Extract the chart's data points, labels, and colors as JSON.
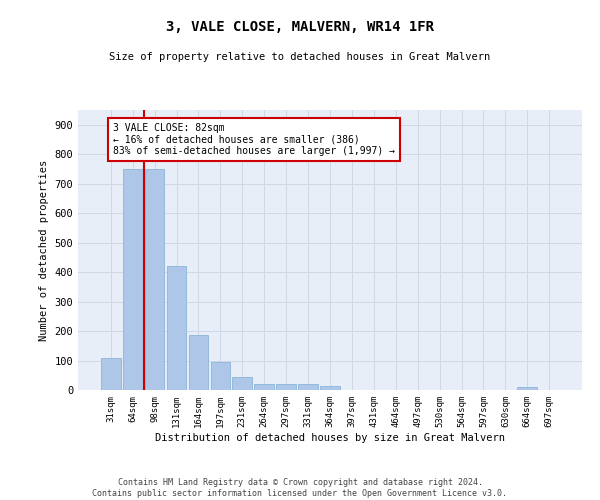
{
  "title": "3, VALE CLOSE, MALVERN, WR14 1FR",
  "subtitle": "Size of property relative to detached houses in Great Malvern",
  "xlabel": "Distribution of detached houses by size in Great Malvern",
  "ylabel": "Number of detached properties",
  "footer_line1": "Contains HM Land Registry data © Crown copyright and database right 2024.",
  "footer_line2": "Contains public sector information licensed under the Open Government Licence v3.0.",
  "categories": [
    "31sqm",
    "64sqm",
    "98sqm",
    "131sqm",
    "164sqm",
    "197sqm",
    "231sqm",
    "264sqm",
    "297sqm",
    "331sqm",
    "364sqm",
    "397sqm",
    "431sqm",
    "464sqm",
    "497sqm",
    "530sqm",
    "564sqm",
    "597sqm",
    "630sqm",
    "664sqm",
    "697sqm"
  ],
  "values": [
    110,
    750,
    750,
    420,
    185,
    95,
    45,
    20,
    20,
    20,
    15,
    0,
    0,
    0,
    0,
    0,
    0,
    0,
    0,
    10,
    0
  ],
  "bar_color": "#aec6e8",
  "bar_edge_color": "#7fafd4",
  "red_line_x": 1.5,
  "annotation_text": "3 VALE CLOSE: 82sqm\n← 16% of detached houses are smaller (386)\n83% of semi-detached houses are larger (1,997) →",
  "annotation_box_color": "#ffffff",
  "annotation_box_edge_color": "#cc0000",
  "red_line_color": "#cc0000",
  "grid_color": "#d0d8e8",
  "background_color": "#e8eef8",
  "ylim": [
    0,
    950
  ],
  "yticks": [
    0,
    100,
    200,
    300,
    400,
    500,
    600,
    700,
    800,
    900
  ]
}
